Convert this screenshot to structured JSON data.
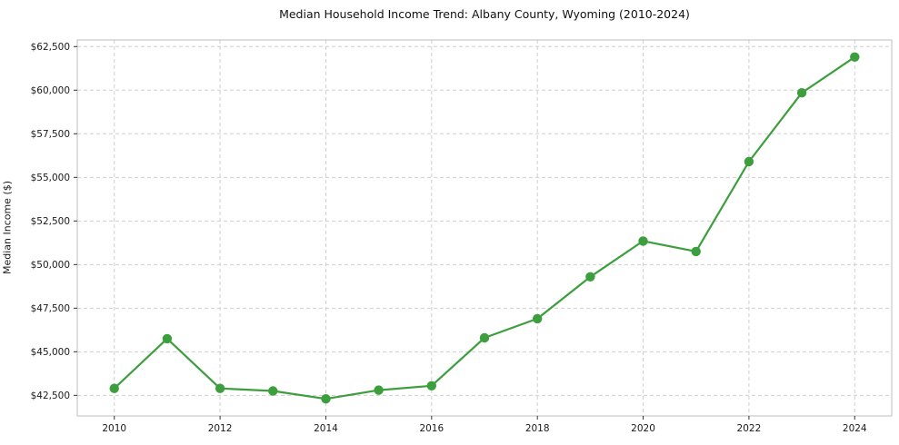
{
  "chart_data": {
    "type": "line",
    "title": "Median Household Income Trend: Albany County, Wyoming (2010-2024)",
    "xlabel": "",
    "ylabel": "Median Income ($)",
    "x": [
      2010,
      2011,
      2012,
      2013,
      2014,
      2015,
      2016,
      2017,
      2018,
      2019,
      2020,
      2021,
      2022,
      2023,
      2024
    ],
    "values": [
      42900,
      45750,
      42900,
      42750,
      42300,
      42800,
      43050,
      45800,
      46900,
      49300,
      51350,
      50750,
      55900,
      59850,
      61900
    ],
    "series_name": "Median Household Income",
    "line_color": "#3c9e3c",
    "marker": "circle",
    "xlim": [
      2009.3,
      2024.7
    ],
    "ylim": [
      41320,
      62880
    ],
    "xticks": [
      2010,
      2012,
      2014,
      2016,
      2018,
      2020,
      2022,
      2024
    ],
    "yticks": [
      42500,
      45000,
      47500,
      50000,
      52500,
      55000,
      57500,
      60000,
      62500
    ],
    "ytick_prefix": "$",
    "grid": true,
    "legend_position": "none"
  }
}
